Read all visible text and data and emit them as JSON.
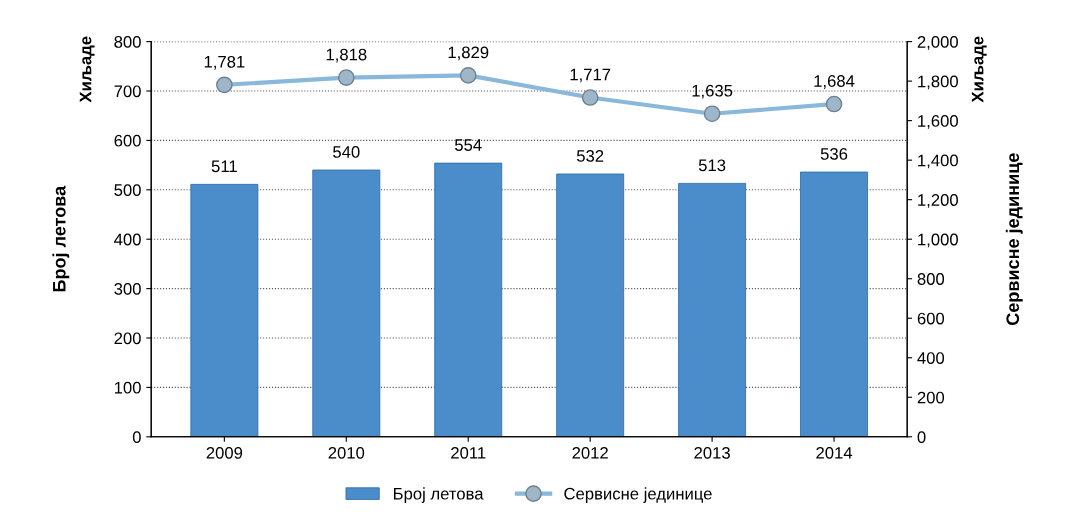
{
  "chart_data": {
    "type": "bar",
    "categories": [
      "2009",
      "2010",
      "2011",
      "2012",
      "2013",
      "2014"
    ],
    "ylabel": "Број летова",
    "y2label": "Сервисне јединице",
    "annotations": [
      "Хиљаде",
      "Хиљаде"
    ],
    "series": [
      {
        "name": "Број летова",
        "color": "#4a8dca",
        "values": [
          511,
          540,
          554,
          532,
          513,
          536
        ],
        "value_labels": [
          "511",
          "540",
          "554",
          "532",
          "513",
          "536"
        ]
      },
      {
        "name": "Сервисне јединице",
        "type": "line",
        "axis": "y2",
        "color": "#8ab8da",
        "marker": "circle",
        "values": [
          1781,
          1818,
          1829,
          1717,
          1635,
          1684
        ],
        "value_labels": [
          "1,781",
          "1,818",
          "1,829",
          "1,717",
          "1,635",
          "1,684"
        ]
      }
    ],
    "ylim": [
      0,
      800
    ],
    "yticks": [
      0,
      100,
      200,
      300,
      400,
      500,
      600,
      700,
      800
    ],
    "y2lim": [
      0,
      2000
    ],
    "y2ticks": [
      0,
      {
        "value": 200,
        "label": "200"
      },
      {
        "value": 400,
        "label": "400"
      },
      {
        "value": 600,
        "label": "600"
      },
      {
        "value": 800,
        "label": "800"
      },
      {
        "value": 1000,
        "label": "1,000"
      },
      {
        "value": 1200,
        "label": "1,200"
      },
      {
        "value": 1400,
        "label": "1,400"
      },
      {
        "value": 1600,
        "label": "1,600"
      },
      {
        "value": 1800,
        "label": "1,800"
      },
      {
        "value": 2000,
        "label": "2,000"
      }
    ],
    "grid": "y",
    "legend": "bottom"
  }
}
